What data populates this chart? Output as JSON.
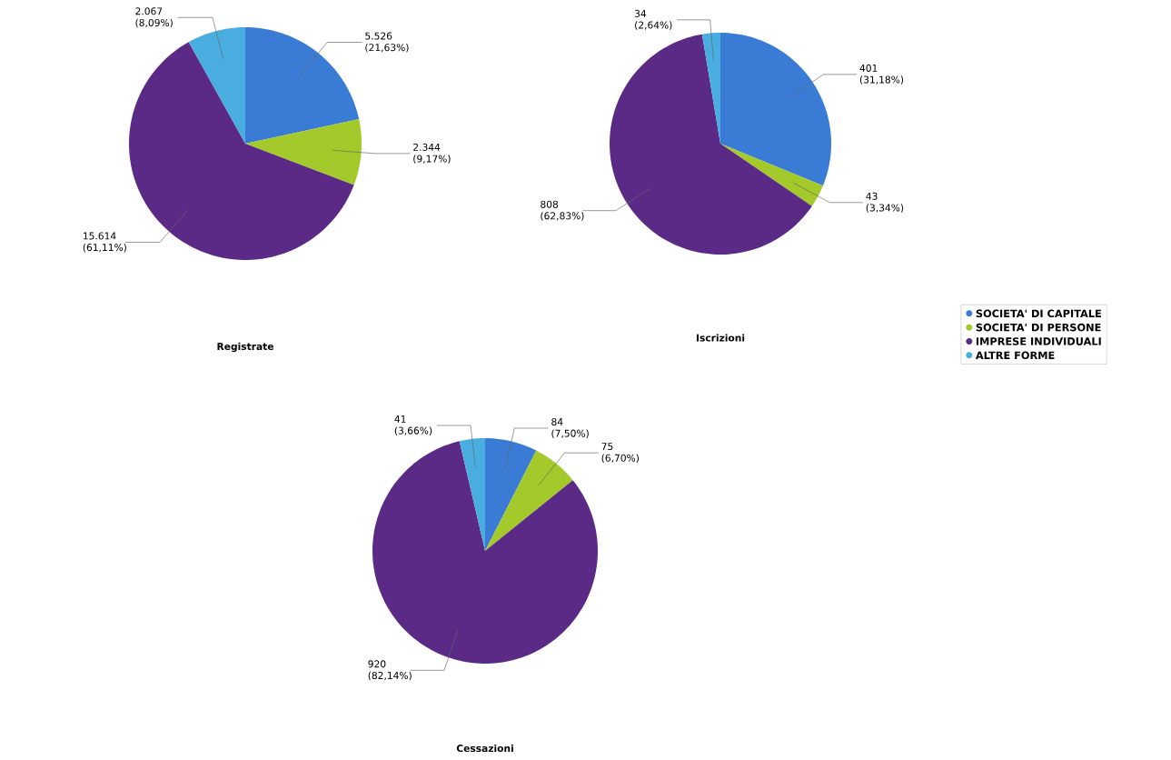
{
  "chart_data": [
    {
      "type": "pie",
      "title": "Registrate",
      "categories": [
        null,
        null,
        null,
        null
      ],
      "values": [
        5526,
        2344,
        15614,
        2067
      ],
      "colors": [
        "#3a7bd5",
        "#a3c92a",
        "#5b2a86",
        "#49ade0"
      ],
      "value_labels": [
        "5.526 (21,63%)",
        "2.344 (9,17%)",
        "15.614 (61,11%)",
        "2.067 (8,09%)"
      ]
    },
    {
      "type": "pie",
      "title": "Iscrizioni",
      "categories": [
        "SOCIETA' DI CAPITALE",
        "SOCIETA' DI PERSONE",
        "IMPRESE INDIVIDUALI",
        "ALTRE FORME"
      ],
      "values": [
        401,
        43,
        808,
        34
      ],
      "colors": [
        "#3a7bd5",
        "#a3c92a",
        "#5b2a86",
        "#49ade0"
      ],
      "value_labels": [
        "401 (31,18%)",
        "43 (3,34%)",
        "808 (62,83%)",
        "34 (2,64%)"
      ],
      "legend": "bottom right"
    },
    {
      "type": "pie",
      "title": "Cessazioni",
      "categories": [
        null,
        null,
        null,
        null
      ],
      "values": [
        84,
        75,
        920,
        41
      ],
      "colors": [
        "#3a7bd5",
        "#a3c92a",
        "#5b2a86",
        "#49ade0"
      ],
      "value_labels": [
        "84 (7,50%)",
        "75 (6,70%)",
        "920 (82,14%)",
        "41 (3,66%)"
      ]
    }
  ]
}
